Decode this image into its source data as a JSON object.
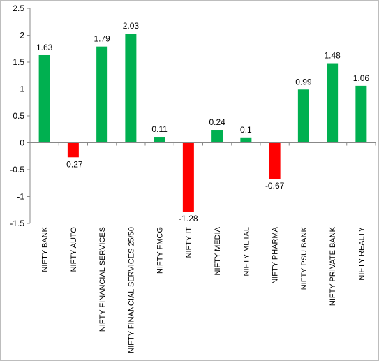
{
  "chart_data": {
    "type": "bar",
    "title": "",
    "xlabel": "",
    "ylabel": "",
    "ylim": [
      -1.5,
      2.5
    ],
    "yticks": [
      2.5,
      2,
      1.5,
      1,
      0.5,
      0,
      -0.5,
      -1,
      -1.5
    ],
    "categories": [
      "NIFTY BANK",
      "NIFTY AUTO",
      "NIFTY FINANCIAL SERVICES",
      "NIFTY FINANCIAL SERVICES 25/50",
      "NIFTY FMCG",
      "NIFTY IT",
      "NIFTY MEDIA",
      "NIFTY METAL",
      "NIFTY PHARMA",
      "NIFTY PSU BANK",
      "NIFTY PRIVATE BANK",
      "NIFTY REALTY"
    ],
    "values": [
      1.63,
      -0.27,
      1.79,
      2.03,
      0.11,
      -1.28,
      0.24,
      0.1,
      -0.67,
      0.99,
      1.48,
      1.06
    ],
    "data_labels": [
      "1.63",
      "-0.27",
      "1.79",
      "2.03",
      "0.11",
      "-1.28",
      "0.24",
      "0.1",
      "-0.67",
      "0.99",
      "1.48",
      "1.06"
    ],
    "grid": false,
    "legend": "none",
    "colors": {
      "positive": "#00b050",
      "negative": "#ff0000"
    }
  }
}
